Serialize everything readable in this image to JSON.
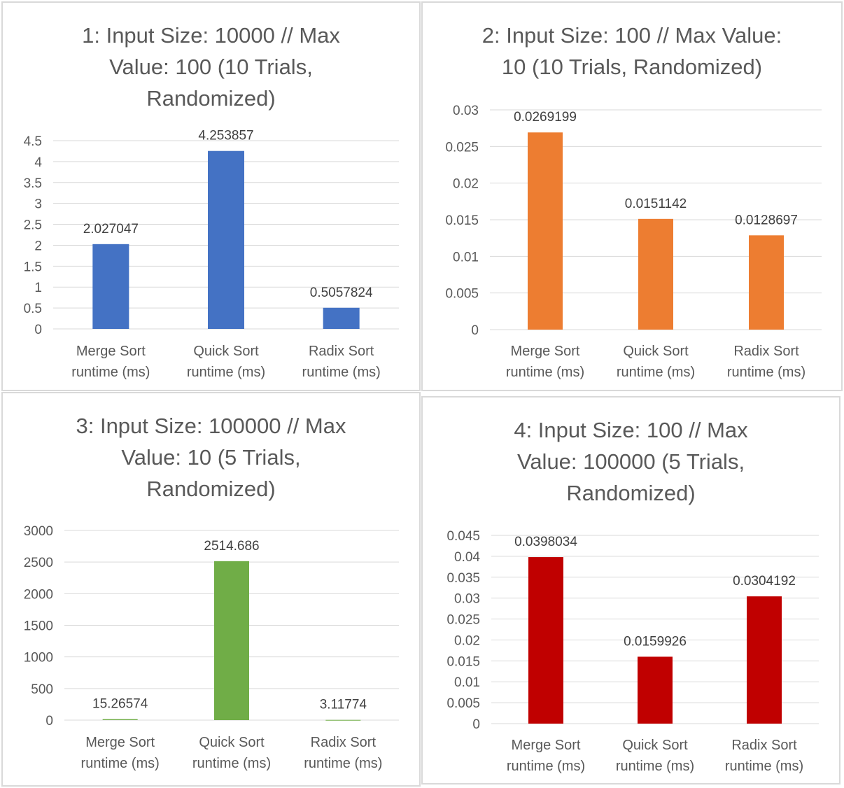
{
  "chart_data": [
    {
      "type": "bar",
      "title": "1: Input Size: 10000 // Max Value: 100 (10 Trials, Randomized)",
      "title_lines": [
        "1: Input Size: 10000 // Max",
        "Value: 100 (10 Trials,",
        "Randomized)"
      ],
      "categories": [
        [
          "Merge Sort",
          "runtime (ms)"
        ],
        [
          "Quick Sort",
          "runtime (ms)"
        ],
        [
          "Radix Sort",
          "runtime (ms)"
        ]
      ],
      "values": [
        2.027047,
        4.253857,
        0.5057824
      ],
      "labels": [
        "2.027047",
        "4.253857",
        "0.5057824"
      ],
      "yticks": [
        "0",
        "0.5",
        "1",
        "1.5",
        "2",
        "2.5",
        "3",
        "3.5",
        "4",
        "4.5"
      ],
      "ylim": [
        0,
        4.5
      ],
      "color": "#4472C4",
      "grid": true,
      "legend": "none"
    },
    {
      "type": "bar",
      "title": "2: Input Size: 100 // Max Value: 10 (10 Trials, Randomized)",
      "title_lines": [
        "2: Input Size: 100 // Max Value:",
        "10 (10 Trials, Randomized)"
      ],
      "categories": [
        [
          "Merge Sort",
          "runtime (ms)"
        ],
        [
          "Quick Sort",
          "runtime (ms)"
        ],
        [
          "Radix Sort",
          "runtime (ms)"
        ]
      ],
      "values": [
        0.0269199,
        0.0151142,
        0.0128697
      ],
      "labels": [
        "0.0269199",
        "0.0151142",
        "0.0128697"
      ],
      "yticks": [
        "0",
        "0.005",
        "0.01",
        "0.015",
        "0.02",
        "0.025",
        "0.03"
      ],
      "ylim": [
        0,
        0.03
      ],
      "color": "#ED7D31",
      "grid": true,
      "legend": "none"
    },
    {
      "type": "bar",
      "title": "3: Input Size: 100000 // Max Value: 10 (5 Trials, Randomized)",
      "title_lines": [
        "3: Input Size: 100000 // Max",
        "Value: 10 (5 Trials,",
        "Randomized)"
      ],
      "categories": [
        [
          "Merge Sort",
          "runtime (ms)"
        ],
        [
          "Quick Sort",
          "runtime (ms)"
        ],
        [
          "Radix Sort",
          "runtime (ms)"
        ]
      ],
      "values": [
        15.26574,
        2514.686,
        3.11774
      ],
      "labels": [
        "15.26574",
        "2514.686",
        "3.11774"
      ],
      "yticks": [
        "0",
        "500",
        "1000",
        "1500",
        "2000",
        "2500",
        "3000"
      ],
      "ylim": [
        0,
        3000
      ],
      "color": "#70AD47",
      "grid": true,
      "legend": "none"
    },
    {
      "type": "bar",
      "title": "4: Input Size: 100 // Max Value: 100000 (5 Trials, Randomized)",
      "title_lines": [
        "4: Input Size: 100 // Max",
        "Value: 100000 (5 Trials,",
        "Randomized)"
      ],
      "categories": [
        [
          "Merge Sort",
          "runtime (ms)"
        ],
        [
          "Quick Sort",
          "runtime (ms)"
        ],
        [
          "Radix Sort",
          "runtime (ms)"
        ]
      ],
      "values": [
        0.0398034,
        0.0159926,
        0.0304192
      ],
      "labels": [
        "0.0398034",
        "0.0159926",
        "0.0304192"
      ],
      "yticks": [
        "0",
        "0.005",
        "0.01",
        "0.015",
        "0.02",
        "0.025",
        "0.03",
        "0.035",
        "0.04",
        "0.045"
      ],
      "ylim": [
        0,
        0.045
      ],
      "color": "#C00000",
      "grid": true,
      "legend": "none"
    }
  ]
}
